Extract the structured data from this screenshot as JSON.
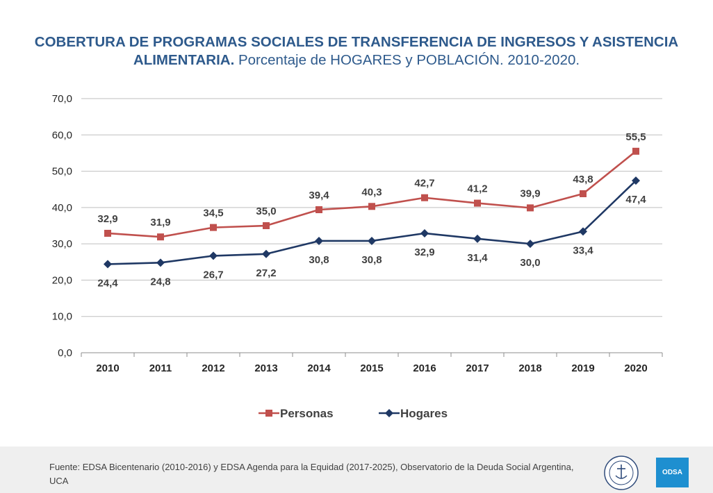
{
  "title_bold": "COBERTURA DE PROGRAMAS SOCIALES DE TRANSFERENCIA DE INGRESOS Y ASISTENCIA ALIMENTARIA.",
  "title_rest": "Porcentaje de HOGARES y POBLACIÓN. 2010-2020.",
  "footer": {
    "source": "Fuente: EDSA Bicentenario (2010-2016) y EDSA Agenda para la Equidad (2017-2025), Observatorio de la Deuda Social Argentina, UCA",
    "logo_text": "ODSA"
  },
  "chart_data": {
    "type": "line",
    "categories": [
      "2010",
      "2011",
      "2012",
      "2013",
      "2014",
      "2015",
      "2016",
      "2017",
      "2018",
      "2019",
      "2020"
    ],
    "y_ticks": [
      "0,0",
      "10,0",
      "20,0",
      "30,0",
      "40,0",
      "50,0",
      "60,0",
      "70,0"
    ],
    "ylim": [
      0,
      70
    ],
    "grid": true,
    "legend_position": "bottom",
    "series": [
      {
        "name": "Personas",
        "color": "#c0504d",
        "marker": "square",
        "values": [
          32.9,
          31.9,
          34.5,
          35.0,
          39.4,
          40.3,
          42.7,
          41.2,
          39.9,
          43.8,
          55.5
        ],
        "labels": [
          "32,9",
          "31,9",
          "34,5",
          "35,0",
          "39,4",
          "40,3",
          "42,7",
          "41,2",
          "39,9",
          "43,8",
          "55,5"
        ],
        "label_side": "above"
      },
      {
        "name": "Hogares",
        "color": "#1f3864",
        "marker": "diamond",
        "values": [
          24.4,
          24.8,
          26.7,
          27.2,
          30.8,
          30.8,
          32.9,
          31.4,
          30.0,
          33.4,
          47.4
        ],
        "labels": [
          "24,4",
          "24,8",
          "26,7",
          "27,2",
          "30,8",
          "30,8",
          "32,9",
          "31,4",
          "30,0",
          "33,4",
          "47,4"
        ],
        "label_side": "below"
      }
    ]
  }
}
